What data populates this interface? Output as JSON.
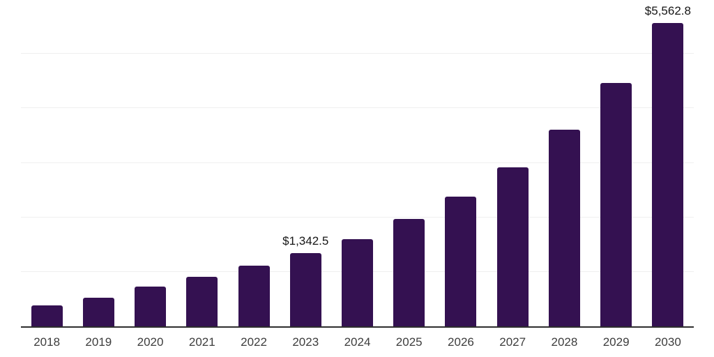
{
  "chart_data": {
    "type": "bar",
    "title": "",
    "xlabel": "",
    "ylabel": "",
    "categories": [
      "2018",
      "2019",
      "2020",
      "2021",
      "2022",
      "2023",
      "2024",
      "2025",
      "2026",
      "2027",
      "2028",
      "2029",
      "2030"
    ],
    "values": [
      385,
      520,
      725,
      905,
      1115,
      1342.5,
      1605,
      1965,
      2385,
      2915,
      3605,
      4470,
      5562.8
    ],
    "data_labels": [
      "",
      "",
      "",
      "",
      "",
      "$1,342.5",
      "",
      "",
      "",
      "",
      "",
      "",
      "$5,562.8"
    ],
    "ylim": [
      0,
      6000
    ],
    "gridline_interval": 1000,
    "grid": true,
    "legend_position": "none",
    "colors": {
      "bar": "#341151",
      "axis_line": "#2e2e2e",
      "gridline": "#efefef",
      "tick_label": "#3d3d3d",
      "value_label": "#161616",
      "background": "#ffffff"
    }
  }
}
